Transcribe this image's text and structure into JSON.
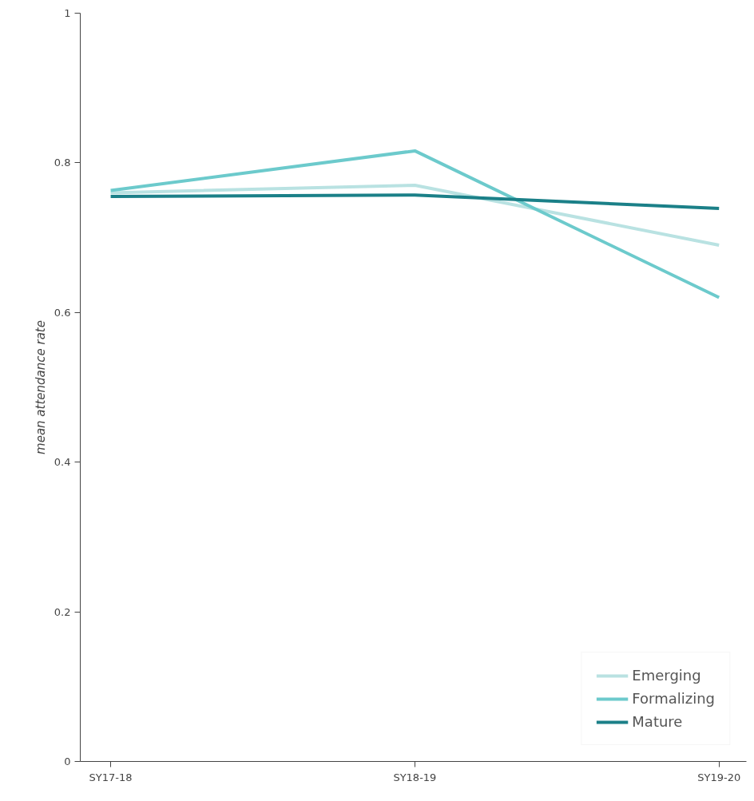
{
  "chart_data": {
    "type": "line",
    "ylabel": "mean attendance rate",
    "categories": [
      "SY17-18",
      "SY18-19",
      "SY19-20"
    ],
    "series": [
      {
        "name": "Emerging",
        "color": "#b9e2e2",
        "values": [
          0.76,
          0.77,
          0.69
        ]
      },
      {
        "name": "Formalizing",
        "color": "#6ccacc",
        "values": [
          0.763,
          0.816,
          0.62
        ]
      },
      {
        "name": "Mature",
        "color": "#1b8088",
        "values": [
          0.755,
          0.757,
          0.739
        ]
      }
    ],
    "ylim": [
      0,
      1
    ],
    "yticks": [
      0,
      0.2,
      0.4,
      0.6,
      0.8,
      1
    ],
    "grid": false,
    "legend": "bottom right",
    "marker": "none",
    "line_style": "solid"
  }
}
